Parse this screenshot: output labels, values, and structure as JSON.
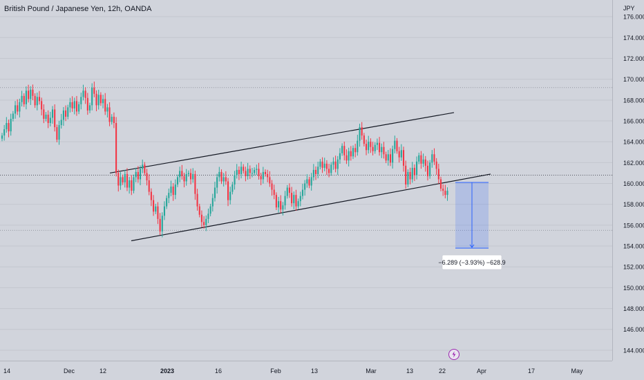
{
  "header": {
    "title": "British Pound / Japanese Yen, 12h, OANDA"
  },
  "chart_data": {
    "type": "candlestick",
    "title": "British Pound / Japanese Yen, 12h, OANDA",
    "price_axis_unit": "JPY",
    "ylim": [
      143,
      177.6
    ],
    "y_ticks": [
      "176.000",
      "174.000",
      "172.000",
      "170.000",
      "168.000",
      "166.000",
      "164.000",
      "162.000",
      "160.000",
      "158.000",
      "156.000",
      "154.000",
      "152.000",
      "150.000",
      "148.000",
      "146.000",
      "144.000"
    ],
    "x_ticks": [
      "14",
      "Dec",
      "12",
      "2023",
      "16",
      "Feb",
      "13",
      "Mar",
      "13",
      "22",
      "Apr",
      "17",
      "May"
    ],
    "colors": {
      "up": "#26a69a",
      "down": "#f23645",
      "measure": "#2962ff",
      "background": "#d1d4dc"
    },
    "channel": {
      "upper": [
        [
          0.0,
          161.0
        ],
        [
          1.0,
          166.8
        ]
      ],
      "lower": [
        [
          0.0,
          154.5
        ],
        [
          1.0,
          160.9
        ]
      ]
    },
    "price_line": 160.8,
    "key_levels": [
      169.2,
      155.5
    ],
    "measurement": {
      "from": 160.1,
      "to": 153.8,
      "label": "−6.289 (−3.93%) −628.9"
    },
    "series": [
      {
        "values": [
          164.6,
          165.2,
          165.8,
          165.0,
          166.2,
          166.7,
          167.5,
          166.9,
          167.8,
          168.4,
          167.6,
          168.9,
          168.1,
          169.0,
          168.4,
          167.5,
          168.3,
          167.9,
          167.1,
          166.2,
          166.6,
          165.8,
          166.3,
          167.1,
          165.4,
          164.2,
          165.6,
          166.1,
          167.0,
          166.4,
          167.3,
          167.8,
          167.2,
          167.9,
          166.9,
          167.6,
          168.3,
          168.9,
          168.2,
          167.0,
          167.5,
          169.2,
          168.6,
          167.5,
          168.5,
          167.7,
          168.1,
          166.9,
          167.3,
          165.9,
          166.4,
          165.8,
          161.0,
          159.8,
          160.6,
          160.1,
          160.9,
          159.6,
          160.3,
          159.3,
          160.6,
          161.1,
          160.4,
          161.4,
          161.8,
          161.0,
          160.3,
          159.2,
          158.4,
          157.3,
          157.8,
          156.6,
          155.4,
          156.9,
          157.8,
          158.6,
          159.1,
          159.7,
          158.9,
          159.9,
          160.6,
          161.2,
          160.7,
          160.2,
          160.9,
          161.0,
          160.4,
          160.9,
          159.0,
          157.8,
          157.0,
          156.3,
          156.0,
          156.6,
          157.1,
          157.8,
          158.6,
          159.6,
          160.6,
          161.1,
          160.2,
          160.6,
          160.2,
          158.4,
          159.2,
          159.9,
          160.8,
          161.3,
          160.9,
          161.6,
          161.2,
          160.7,
          161.4,
          161.0,
          161.0,
          161.3,
          161.4,
          160.7,
          160.4,
          161.1,
          160.9,
          160.6,
          160.0,
          159.4,
          158.9,
          157.7,
          158.3,
          157.5,
          157.9,
          158.8,
          159.6,
          159.1,
          158.1,
          158.9,
          157.8,
          158.3,
          158.8,
          159.4,
          160.0,
          160.4,
          159.8,
          160.6,
          161.3,
          160.9,
          161.6,
          162.1,
          161.5,
          161.9,
          161.4,
          161.0,
          161.8,
          162.1,
          161.4,
          162.3,
          162.9,
          163.6,
          162.7,
          162.2,
          163.1,
          162.6,
          163.4,
          163.0,
          164.1,
          165.4,
          164.6,
          163.8,
          163.2,
          164.0,
          163.5,
          163.1,
          163.7,
          163.9,
          163.0,
          163.5,
          162.8,
          162.2,
          162.8,
          162.0,
          163.3,
          164.1,
          163.1,
          162.5,
          163.2,
          161.7,
          159.9,
          161.1,
          160.4,
          161.5,
          160.8,
          162.1,
          162.7,
          161.9,
          162.3,
          161.7,
          160.7,
          162.0,
          162.8,
          162.1,
          161.4,
          160.4,
          159.5,
          159.3,
          158.9,
          159.3
        ]
      }
    ]
  }
}
